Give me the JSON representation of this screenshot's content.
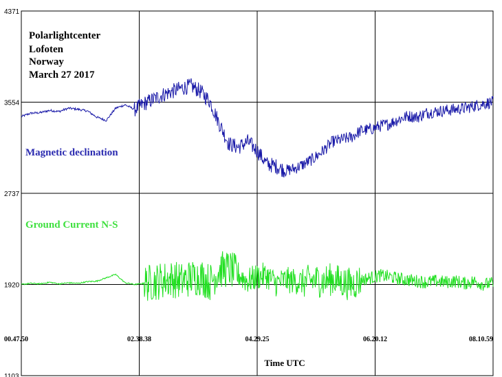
{
  "chart_data": {
    "type": "line",
    "station": [
      "Polarlightcenter",
      "Lofoten",
      "Norway",
      "March 27 2017"
    ],
    "xlabel": "Time UTC",
    "x_ticks": [
      "00.47.50",
      "02.38.38",
      "04.29.25",
      "06.20.12",
      "08.10.59"
    ],
    "y_ticks": [
      4371,
      3554,
      2737,
      1920,
      1103
    ],
    "ylim": [
      1103,
      4371
    ],
    "grid": true,
    "colors": {
      "declination": "#1a1aa8",
      "ground": "#22e022",
      "grid": "#000000"
    },
    "series": [
      {
        "name": "Magnetic declination",
        "color": "#1a1aa8",
        "x": [
          0,
          0.02,
          0.04,
          0.06,
          0.08,
          0.1,
          0.12,
          0.14,
          0.16,
          0.18,
          0.2,
          0.22,
          0.24,
          0.26,
          0.28,
          0.3,
          0.32,
          0.34,
          0.36,
          0.38,
          0.4,
          0.42,
          0.44,
          0.46,
          0.48,
          0.5,
          0.52,
          0.54,
          0.56,
          0.58,
          0.6,
          0.62,
          0.64,
          0.66,
          0.68,
          0.7,
          0.72,
          0.74,
          0.76,
          0.78,
          0.8,
          0.82,
          0.84,
          0.86,
          0.88,
          0.9,
          0.92,
          0.94,
          0.96,
          0.98,
          1.0
        ],
        "values": [
          3425,
          3455,
          3460,
          3480,
          3470,
          3500,
          3490,
          3475,
          3420,
          3390,
          3500,
          3530,
          3490,
          3540,
          3580,
          3620,
          3650,
          3680,
          3700,
          3650,
          3560,
          3360,
          3180,
          3150,
          3200,
          3120,
          3000,
          2980,
          2940,
          2960,
          3000,
          3050,
          3120,
          3200,
          3220,
          3240,
          3300,
          3310,
          3340,
          3360,
          3400,
          3430,
          3420,
          3460,
          3470,
          3480,
          3490,
          3500,
          3520,
          3540,
          3555
        ]
      },
      {
        "name": "Ground Current N-S",
        "color": "#22e022",
        "x": [
          0,
          0.02,
          0.04,
          0.06,
          0.08,
          0.1,
          0.12,
          0.14,
          0.16,
          0.18,
          0.2,
          0.22,
          0.24,
          0.26,
          0.28,
          0.3,
          0.32,
          0.34,
          0.36,
          0.38,
          0.4,
          0.42,
          0.44,
          0.46,
          0.48,
          0.5,
          0.52,
          0.54,
          0.56,
          0.58,
          0.6,
          0.62,
          0.64,
          0.66,
          0.68,
          0.7,
          0.72,
          0.74,
          0.76,
          0.78,
          0.8,
          0.82,
          0.84,
          0.86,
          0.88,
          0.9,
          0.92,
          0.94,
          0.96,
          0.98,
          1.0
        ],
        "values": [
          1920,
          1930,
          1925,
          1940,
          1925,
          1935,
          1930,
          1945,
          1950,
          1980,
          2010,
          1935,
          1920,
          1930,
          1940,
          1960,
          1970,
          1950,
          1980,
          1990,
          1940,
          2050,
          2060,
          2010,
          1950,
          1990,
          2000,
          1930,
          1960,
          1950,
          1940,
          1960,
          1950,
          1970,
          1940,
          1920,
          1960,
          1980,
          2000,
          1990,
          1970,
          1960,
          1950,
          1940,
          1950,
          1940,
          1950,
          1930,
          1950,
          1920,
          1930
        ]
      }
    ]
  }
}
